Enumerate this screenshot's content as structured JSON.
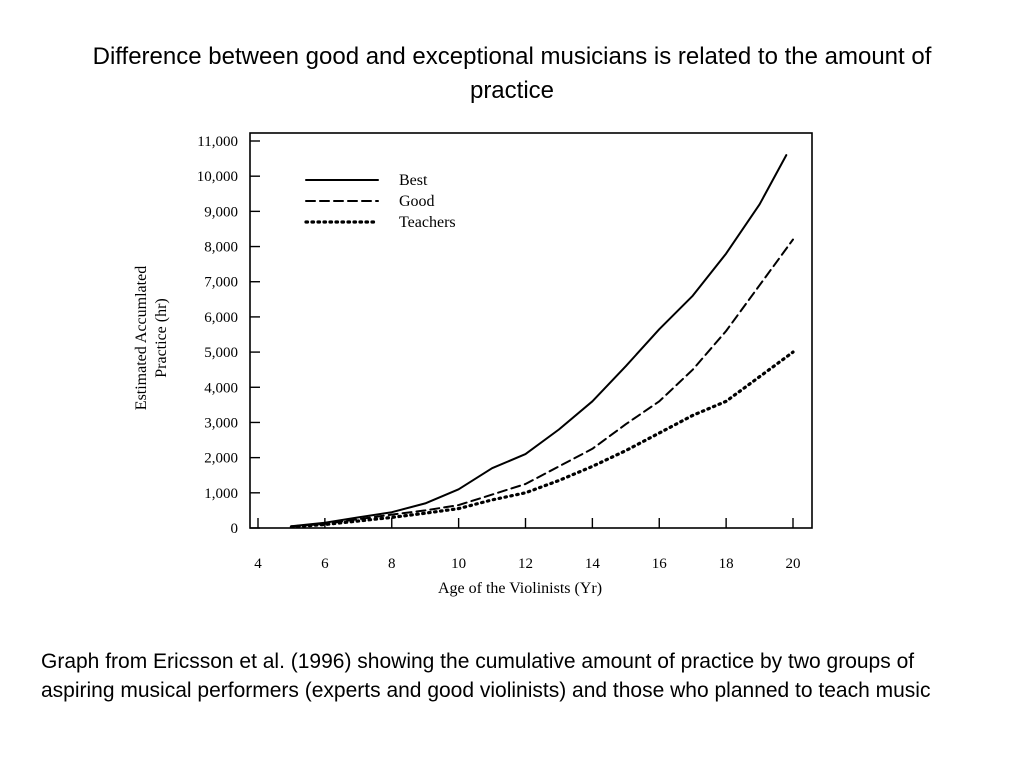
{
  "slide": {
    "title": "Difference between good and exceptional musicians is related to the amount of practice",
    "caption": "Graph from Ericsson et al. (1996) showing the cumulative amount of practice by two groups of aspiring musical performers (experts and good violinists) and those who planned to teach music"
  },
  "chart_data": {
    "type": "line",
    "xlabel": "Age of the Violinists (Yr)",
    "ylabel_line1": "Estimated Accumlated",
    "ylabel_line2": "Practice (hr)",
    "xlim": [
      4,
      20
    ],
    "ylim": [
      0,
      11000
    ],
    "xticks": [
      4,
      6,
      8,
      10,
      12,
      14,
      16,
      18,
      20
    ],
    "yticks": [
      0,
      1000,
      2000,
      3000,
      4000,
      5000,
      6000,
      7000,
      8000,
      9000,
      10000,
      11000
    ],
    "ytick_labels": [
      "0",
      "1,000",
      "2,000",
      "3,000",
      "4,000",
      "5,000",
      "6,000",
      "7,000",
      "8,000",
      "9,000",
      "10,000",
      "11,000"
    ],
    "legend_position": "top-left",
    "grid": false,
    "series": [
      {
        "name": "Best",
        "style": "solid",
        "color": "#000000",
        "x": [
          5,
          6,
          7,
          8,
          9,
          10,
          11,
          12,
          13,
          14,
          15,
          16,
          17,
          18,
          19,
          19.8
        ],
        "y": [
          50,
          150,
          300,
          450,
          700,
          1100,
          1700,
          2100,
          2800,
          3600,
          4600,
          5650,
          6600,
          7800,
          9200,
          10600
        ]
      },
      {
        "name": "Good",
        "style": "dashed",
        "color": "#000000",
        "x": [
          5,
          6,
          7,
          8,
          9,
          10,
          11,
          12,
          13,
          14,
          15,
          16,
          17,
          18,
          19,
          20
        ],
        "y": [
          40,
          120,
          250,
          380,
          500,
          650,
          950,
          1250,
          1750,
          2250,
          2950,
          3600,
          4500,
          5600,
          6900,
          8200
        ]
      },
      {
        "name": "Teachers",
        "style": "dotted",
        "color": "#000000",
        "x": [
          5,
          6,
          7,
          8,
          9,
          10,
          11,
          12,
          13,
          14,
          15,
          16,
          17,
          18,
          19,
          20
        ],
        "y": [
          30,
          100,
          200,
          300,
          420,
          550,
          800,
          1000,
          1350,
          1750,
          2200,
          2700,
          3200,
          3600,
          4300,
          5000
        ]
      }
    ]
  }
}
